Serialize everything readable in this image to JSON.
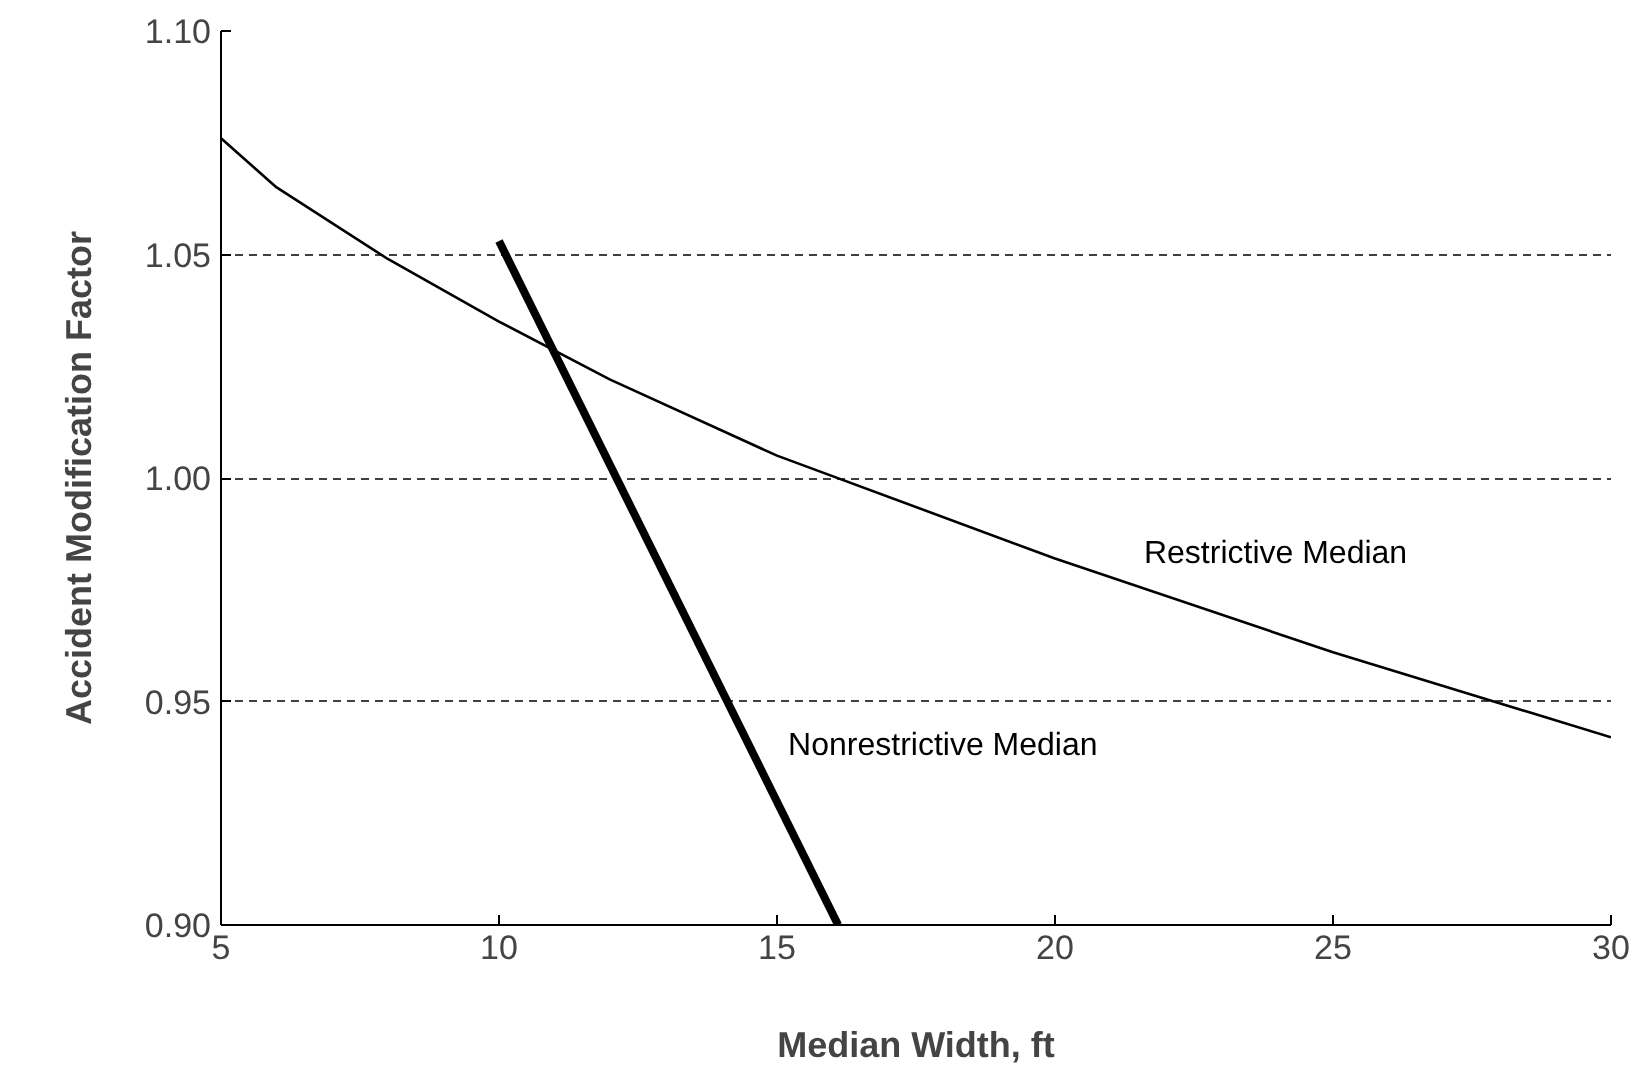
{
  "chart_data": {
    "type": "line",
    "xlabel": "Median Width, ft",
    "ylabel": "Accident Modification Factor",
    "xlim": [
      5,
      30
    ],
    "xticks": [
      5,
      10,
      15,
      20,
      25,
      30
    ],
    "ylim": [
      0.9,
      1.1
    ],
    "yticks": [
      {
        "value": 0.9,
        "label": "0.90"
      },
      {
        "value": 0.95,
        "label": "0.95"
      },
      {
        "value": 1.0,
        "label": "1.00"
      },
      {
        "value": 1.05,
        "label": "1.05"
      },
      {
        "value": 1.1,
        "label": "1.10"
      }
    ],
    "grid": "y",
    "series": [
      {
        "name": "Restrictive Median",
        "color": "#000000",
        "x": [
          5,
          6,
          8,
          10,
          12,
          15,
          20,
          25,
          30
        ],
        "values": [
          1.076,
          1.065,
          1.049,
          1.035,
          1.022,
          1.005,
          0.982,
          0.961,
          0.942
        ]
      },
      {
        "name": "Nonrestrictive Median",
        "color": "#000000",
        "x": [
          10,
          16.1
        ],
        "values": [
          1.053,
          0.9
        ]
      }
    ]
  }
}
